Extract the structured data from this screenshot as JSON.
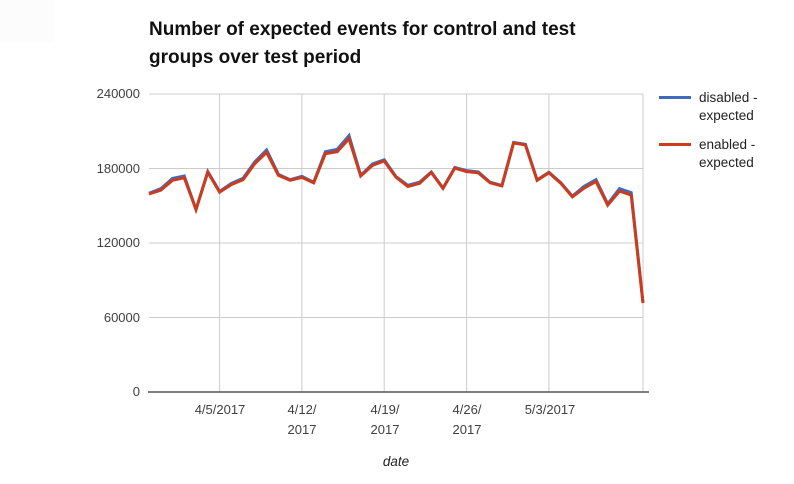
{
  "header": {
    "title_line1": "Number of expected events for control and test",
    "title_line2": "groups over test period"
  },
  "y_axis": {
    "ticks_display": [
      "240000",
      "180000",
      "120000",
      "60000",
      "0"
    ]
  },
  "x_axis": {
    "title": "date",
    "ticks_display": [
      {
        "l1": "4/5/2017"
      },
      {
        "l1": "4/12/",
        "l2": "2017"
      },
      {
        "l1": "4/19/",
        "l2": "2017"
      },
      {
        "l1": "4/26/",
        "l2": "2017"
      },
      {
        "l1": "5/3/2017"
      }
    ]
  },
  "legend": {
    "items": [
      {
        "label": "disabled - expected",
        "l1": "disabled -",
        "l2": "expected",
        "color": "#3f6bbf"
      },
      {
        "label": "enabled - expected",
        "l1": "enabled -",
        "l2": "expected",
        "color": "#cc3b1c"
      }
    ]
  },
  "chart_data": {
    "type": "line",
    "title": "Number of expected events for control and test groups over test period",
    "xlabel": "date",
    "ylabel": "",
    "ylim": [
      0,
      240000
    ],
    "y_ticks": [
      0,
      60000,
      120000,
      180000,
      240000
    ],
    "x_ticks": [
      "4/5/2017",
      "4/12/2017",
      "4/19/2017",
      "4/26/2017",
      "5/3/2017"
    ],
    "grid": true,
    "legend_position": "right",
    "x": [
      "3/30/2017",
      "3/31/2017",
      "4/1/2017",
      "4/2/2017",
      "4/3/2017",
      "4/4/2017",
      "4/5/2017",
      "4/6/2017",
      "4/7/2017",
      "4/8/2017",
      "4/9/2017",
      "4/10/2017",
      "4/11/2017",
      "4/12/2017",
      "4/13/2017",
      "4/14/2017",
      "4/15/2017",
      "4/16/2017",
      "4/17/2017",
      "4/18/2017",
      "4/19/2017",
      "4/20/2017",
      "4/21/2017",
      "4/22/2017",
      "4/23/2017",
      "4/24/2017",
      "4/25/2017",
      "4/26/2017",
      "4/27/2017",
      "4/28/2017",
      "4/29/2017",
      "4/30/2017",
      "5/1/2017",
      "5/2/2017",
      "5/3/2017",
      "5/4/2017",
      "5/5/2017",
      "5/6/2017",
      "5/7/2017",
      "5/8/2017",
      "5/9/2017",
      "5/10/2017",
      "5/11/2017"
    ],
    "series": [
      {
        "name": "disabled - expected",
        "color": "#3f6bbf",
        "values": [
          160000,
          163700,
          172000,
          174000,
          147000,
          177500,
          161500,
          168000,
          172200,
          185500,
          195000,
          175300,
          171000,
          173600,
          169000,
          193500,
          195500,
          206500,
          174500,
          183700,
          187000,
          173500,
          166500,
          169000,
          177300,
          164300,
          180800,
          178300,
          177300,
          169000,
          166300,
          201000,
          199500,
          170800,
          177000,
          168700,
          157700,
          165700,
          171000,
          151500,
          163800,
          160600,
          71900
        ]
      },
      {
        "name": "enabled - expected",
        "color": "#cc3b1c",
        "values": [
          159500,
          162500,
          170500,
          172500,
          147000,
          177000,
          161000,
          167000,
          171000,
          184000,
          193000,
          174500,
          170500,
          172800,
          168500,
          192000,
          193500,
          204000,
          174000,
          182500,
          186000,
          173000,
          165500,
          168000,
          176800,
          164000,
          180300,
          177500,
          176500,
          168500,
          166000,
          200500,
          199000,
          170500,
          176500,
          168200,
          157200,
          164200,
          169500,
          150500,
          161800,
          158600,
          71600
        ]
      }
    ],
    "style": {
      "gridline_color": "#cccccc",
      "axis_line_color": "#555555",
      "label_color": "#404040"
    }
  }
}
